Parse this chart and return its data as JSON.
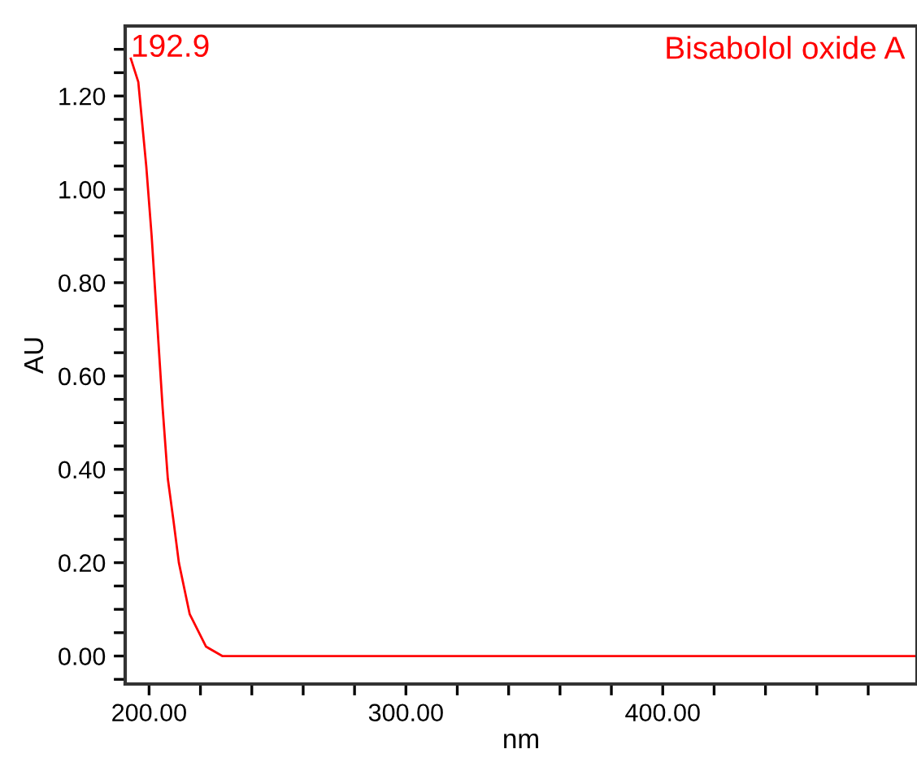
{
  "chart_data": {
    "type": "line",
    "xlabel": "nm",
    "ylabel": "AU",
    "x": [
      192.9,
      195.8,
      198.9,
      201.0,
      203.2,
      205.3,
      207.3,
      209.5,
      211.6,
      215.8,
      222.2,
      228.5,
      232.7,
      300,
      400,
      499
    ],
    "series": [
      {
        "name": "Bisabolol oxide A",
        "color": "#ff0000",
        "values": [
          1.28,
          1.23,
          1.05,
          0.9,
          0.71,
          0.53,
          0.38,
          0.29,
          0.2,
          0.09,
          0.02,
          0.0,
          0.0,
          0.0,
          0.0,
          0.0
        ]
      }
    ],
    "annotations": [
      {
        "text": "192.9",
        "x": 192.9,
        "y": 1.28
      }
    ],
    "xlim": [
      190.7,
      499
    ],
    "ylim": [
      -0.06,
      1.35
    ],
    "xticks": [
      {
        "value": 200,
        "label": "200.00"
      },
      {
        "value": 220,
        "label": null
      },
      {
        "value": 240,
        "label": null
      },
      {
        "value": 260,
        "label": null
      },
      {
        "value": 280,
        "label": null
      },
      {
        "value": 300,
        "label": "300.00"
      },
      {
        "value": 320,
        "label": null
      },
      {
        "value": 340,
        "label": null
      },
      {
        "value": 360,
        "label": null
      },
      {
        "value": 380,
        "label": null
      },
      {
        "value": 400,
        "label": "400.00"
      },
      {
        "value": 420,
        "label": null
      },
      {
        "value": 440,
        "label": null
      },
      {
        "value": 460,
        "label": null
      },
      {
        "value": 480,
        "label": null
      }
    ],
    "yticks": [
      {
        "value": -0.05,
        "label": null
      },
      {
        "value": 0,
        "label": "0.00"
      },
      {
        "value": 0.05,
        "label": null
      },
      {
        "value": 0.1,
        "label": null
      },
      {
        "value": 0.15,
        "label": null
      },
      {
        "value": 0.2,
        "label": "0.20"
      },
      {
        "value": 0.25,
        "label": null
      },
      {
        "value": 0.3,
        "label": null
      },
      {
        "value": 0.35,
        "label": null
      },
      {
        "value": 0.4,
        "label": "0.40"
      },
      {
        "value": 0.45,
        "label": null
      },
      {
        "value": 0.5,
        "label": null
      },
      {
        "value": 0.55,
        "label": null
      },
      {
        "value": 0.6,
        "label": "0.60"
      },
      {
        "value": 0.65,
        "label": null
      },
      {
        "value": 0.7,
        "label": null
      },
      {
        "value": 0.75,
        "label": null
      },
      {
        "value": 0.8,
        "label": "0.80"
      },
      {
        "value": 0.85,
        "label": null
      },
      {
        "value": 0.9,
        "label": null
      },
      {
        "value": 0.95,
        "label": null
      },
      {
        "value": 1.0,
        "label": "1.00"
      },
      {
        "value": 1.05,
        "label": null
      },
      {
        "value": 1.1,
        "label": null
      },
      {
        "value": 1.15,
        "label": null
      },
      {
        "value": 1.2,
        "label": "1.20"
      },
      {
        "value": 1.25,
        "label": null
      },
      {
        "value": 1.3,
        "label": null
      }
    ],
    "grid": false,
    "legend": false,
    "marker": "none",
    "line_style": "solid"
  }
}
